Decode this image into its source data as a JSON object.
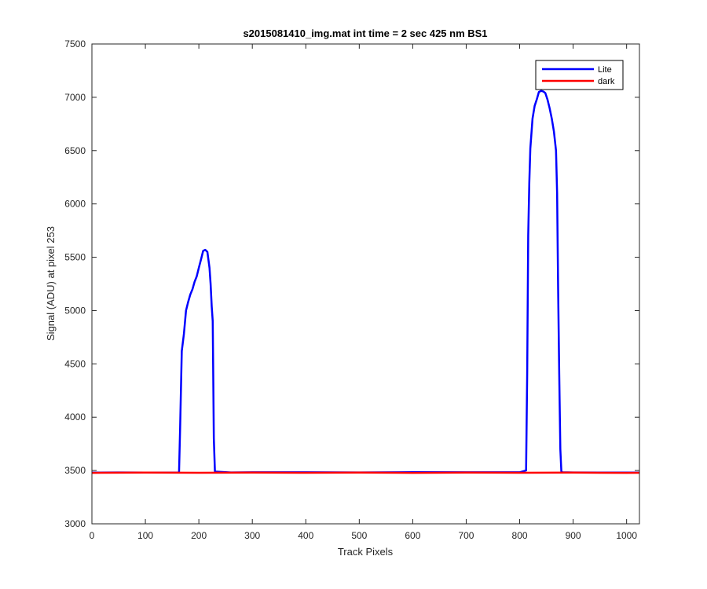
{
  "chart_data": {
    "type": "line",
    "title": "s2015081410_img.mat int time = 2 sec  425 nm BS1",
    "xlabel": "Track Pixels",
    "ylabel": "Signal (ADU) at pixel 253",
    "xlim": [
      0,
      1024
    ],
    "ylim": [
      3000,
      7500
    ],
    "xticks": [
      0,
      100,
      200,
      300,
      400,
      500,
      600,
      700,
      800,
      900,
      1000
    ],
    "yticks": [
      3000,
      3500,
      4000,
      4500,
      5000,
      5500,
      6000,
      6500,
      7000,
      7500
    ],
    "grid": false,
    "legend_position": "top-right",
    "series": [
      {
        "name": "Lite",
        "color": "#0000ff",
        "x": [
          0,
          50,
          100,
          150,
          163,
          165,
          168,
          172,
          176,
          180,
          184,
          188,
          192,
          196,
          200,
          204,
          208,
          212,
          216,
          220,
          222,
          224,
          226,
          228,
          230,
          260,
          300,
          400,
          500,
          600,
          700,
          800,
          812,
          814,
          816,
          818,
          820,
          824,
          828,
          832,
          836,
          840,
          844,
          848,
          852,
          856,
          860,
          864,
          868,
          870,
          872,
          874,
          876,
          878,
          880,
          900,
          1000,
          1024
        ],
        "y": [
          3480,
          3482,
          3481,
          3480,
          3480,
          3900,
          4620,
          4780,
          5000,
          5080,
          5150,
          5200,
          5270,
          5320,
          5400,
          5480,
          5560,
          5570,
          5550,
          5400,
          5250,
          5040,
          4900,
          3800,
          3490,
          3482,
          3483,
          3483,
          3482,
          3484,
          3483,
          3483,
          3500,
          4400,
          5700,
          6200,
          6520,
          6800,
          6920,
          6980,
          7050,
          7060,
          7055,
          7040,
          6980,
          6900,
          6800,
          6680,
          6500,
          6100,
          5200,
          4400,
          3700,
          3490,
          3483,
          3482,
          3480,
          3481
        ]
      },
      {
        "name": "dark",
        "color": "#ff0000",
        "x": [
          0,
          100,
          200,
          300,
          400,
          500,
          600,
          700,
          800,
          900,
          1000,
          1024
        ],
        "y": [
          3478,
          3480,
          3479,
          3481,
          3479,
          3480,
          3478,
          3480,
          3479,
          3480,
          3478,
          3479
        ]
      }
    ]
  }
}
